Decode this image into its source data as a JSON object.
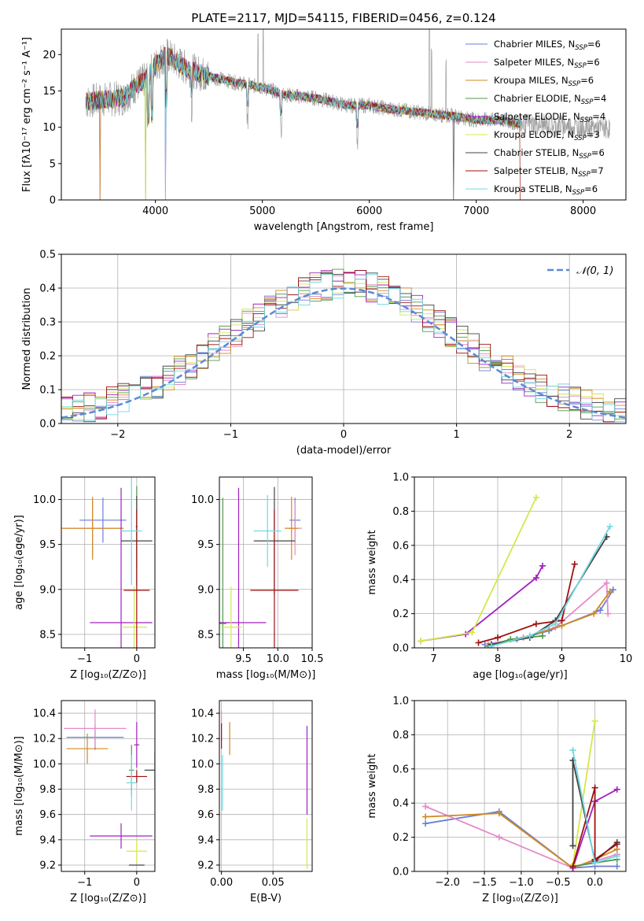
{
  "chart_data": [
    {
      "type": "line",
      "panel": "spectrum",
      "title": "PLATE=2117, MJD=54115, FIBERID=0456, z=0.124",
      "xlabel": "wavelength [Angstrom, rest frame]",
      "ylabel": "Flux [fλ10⁻¹⁷ erg cm⁻² s⁻¹ A⁻¹]",
      "xlim": [
        3120,
        8400
      ],
      "ylim": [
        0,
        23.5
      ],
      "xticks": [
        "4000",
        "5000",
        "6000",
        "7000",
        "8000"
      ],
      "yticks": [
        "0",
        "5",
        "10",
        "15",
        "20"
      ],
      "grid": true,
      "legend_position": "top-right",
      "series": [
        {
          "name": "Chabrier MILES, N",
          "sub": "SSP",
          "suffix": "=6",
          "color": "#6a7fd4"
        },
        {
          "name": "Salpeter MILES, N",
          "sub": "SSP",
          "suffix": "=6",
          "color": "#e58ac8"
        },
        {
          "name": "Kroupa MILES, N",
          "sub": "SSP",
          "suffix": "=6",
          "color": "#d08a20"
        },
        {
          "name": "Chabrier ELODIE, N",
          "sub": "SSP",
          "suffix": "=4",
          "color": "#4e9a4e"
        },
        {
          "name": "Salpeter ELODIE, N",
          "sub": "SSP",
          "suffix": "=4",
          "color": "#a020c0"
        },
        {
          "name": "Kroupa ELODIE, N",
          "sub": "SSP",
          "suffix": "=3",
          "color": "#d4e84a"
        },
        {
          "name": "Chabrier STELIB, N",
          "sub": "SSP",
          "suffix": "=6",
          "color": "#444444"
        },
        {
          "name": "Salpeter STELIB, N",
          "sub": "SSP",
          "suffix": "=7",
          "color": "#a01010"
        },
        {
          "name": "Kroupa STELIB, N",
          "sub": "SSP",
          "suffix": "=6",
          "color": "#70d8e0"
        }
      ],
      "continuum": {
        "x": [
          3350,
          3500,
          3700,
          3800,
          3900,
          4000,
          4100,
          4300,
          4500,
          4800,
          5000,
          5200,
          5500,
          5800,
          6000,
          6200,
          6500,
          6800,
          7000,
          7200,
          7400
        ],
        "y": [
          13.5,
          13.8,
          14.0,
          15.5,
          16.5,
          18.5,
          20.0,
          18.0,
          17.0,
          16.0,
          15.5,
          14.5,
          14.0,
          13.0,
          13.0,
          12.5,
          12.0,
          11.5,
          11.0,
          11.0,
          10.5
        ]
      },
      "observed_color": "#a0a0a0"
    },
    {
      "type": "line",
      "panel": "residuals",
      "xlabel": "(data-model)/error",
      "ylabel": "Normed distribution",
      "xlim": [
        -2.5,
        2.5
      ],
      "ylim": [
        0,
        0.5
      ],
      "xticks": [
        "−2",
        "−1",
        "0",
        "1",
        "2"
      ],
      "yticks": [
        "0.0",
        "0.1",
        "0.2",
        "0.3",
        "0.4",
        "0.5"
      ],
      "grid": true,
      "legend_position": "top-right",
      "reference_curve": {
        "name": "𝒩(0, 1)",
        "color": "#5b8ad6",
        "style": "dashed"
      },
      "histogram_bins": {
        "start": -2.5,
        "width": 0.1,
        "count": 50
      }
    },
    {
      "type": "scatter",
      "panel": "age-vs-metallicity",
      "xlabel": "Z [log₁₀(Z/Z⊙)]",
      "ylabel": "age  [log₁₀(age/yr)]",
      "xlim": [
        -1.45,
        0.35
      ],
      "ylim": [
        8.35,
        10.25
      ],
      "xticks": [
        "−1",
        "0"
      ],
      "yticks": [
        "8.5",
        "9.0",
        "9.5",
        "10.0"
      ],
      "points": [
        {
          "x": -0.65,
          "y": 9.77,
          "xerr": 0.45,
          "yerr": 0.25,
          "color": "#6a7fd4"
        },
        {
          "x": -0.85,
          "y": 9.68,
          "xerr": 0.55,
          "yerr": 0.3,
          "color": "#e58ac8"
        },
        {
          "x": -0.85,
          "y": 9.68,
          "xerr": 0.6,
          "yerr": 0.35,
          "color": "#d08a20"
        },
        {
          "x": 0.0,
          "y": 9.7,
          "xerr": 0.02,
          "yerr": 0.45,
          "color": "#4e9a4e"
        },
        {
          "x": -0.3,
          "y": 8.63,
          "xerr": 0.6,
          "yerr": 1.5,
          "color": "#a020c0"
        },
        {
          "x": -0.05,
          "y": 8.58,
          "xerr": 0.25,
          "yerr": 0.45,
          "color": "#d4e84a"
        },
        {
          "x": 0.0,
          "y": 9.54,
          "xerr": 0.3,
          "yerr": 0.5,
          "color": "#444444"
        },
        {
          "x": 0.0,
          "y": 8.99,
          "xerr": 0.25,
          "yerr": 0.9,
          "color": "#a01010"
        },
        {
          "x": -0.1,
          "y": 9.65,
          "xerr": 0.2,
          "yerr": 0.6,
          "color": "#70d8e0"
        }
      ]
    },
    {
      "type": "scatter",
      "panel": "age-vs-mass",
      "xlabel": "mass [log₁₀(M/M⊙)]",
      "xlim": [
        9.15,
        10.5
      ],
      "ylim": [
        8.35,
        10.25
      ],
      "xticks": [
        "9.5",
        "10.0",
        "10.5"
      ],
      "yticks": [
        "8.5",
        "9.0",
        "9.5",
        "10.0"
      ],
      "points": [
        {
          "x": 10.25,
          "y": 9.77,
          "xerr": 0.08,
          "yerr": 0.25,
          "color": "#6a7fd4"
        },
        {
          "x": 10.25,
          "y": 9.68,
          "xerr": 0.1,
          "yerr": 0.3,
          "color": "#e58ac8"
        },
        {
          "x": 10.2,
          "y": 9.68,
          "xerr": 0.1,
          "yerr": 0.35,
          "color": "#d08a20"
        },
        {
          "x": 9.2,
          "y": 8.62,
          "xerr": 0.05,
          "yerr": 1.4,
          "color": "#4e9a4e"
        },
        {
          "x": 9.43,
          "y": 8.63,
          "xerr": 0.4,
          "yerr": 1.5,
          "color": "#a020c0"
        },
        {
          "x": 9.32,
          "y": 8.58,
          "xerr": 0.15,
          "yerr": 0.45,
          "color": "#d4e84a"
        },
        {
          "x": 9.95,
          "y": 9.54,
          "xerr": 0.3,
          "yerr": 0.6,
          "color": "#444444"
        },
        {
          "x": 9.95,
          "y": 8.99,
          "xerr": 0.35,
          "yerr": 0.9,
          "color": "#a01010"
        },
        {
          "x": 9.85,
          "y": 9.65,
          "xerr": 0.2,
          "yerr": 0.4,
          "color": "#70d8e0"
        }
      ]
    },
    {
      "type": "line",
      "panel": "mass-weight-vs-age",
      "xlabel": "age  [log₁₀(age/yr)]",
      "ylabel": "mass weight",
      "xlim": [
        6.7,
        10.0
      ],
      "ylim": [
        0,
        1.0
      ],
      "xticks": [
        "7",
        "8",
        "9",
        "10"
      ],
      "yticks": [
        "0.0",
        "0.2",
        "0.4",
        "0.6",
        "0.8",
        "1.0"
      ],
      "grid": true,
      "series": [
        {
          "color": "#6a7fd4",
          "x": [
            7.8,
            8.3,
            8.8,
            9.6,
            9.8
          ],
          "y": [
            0.02,
            0.05,
            0.1,
            0.22,
            0.34
          ]
        },
        {
          "color": "#e58ac8",
          "x": [
            7.85,
            8.4,
            8.9,
            9.7,
            9.72
          ],
          "y": [
            0.02,
            0.06,
            0.12,
            0.38,
            0.2
          ]
        },
        {
          "color": "#d08a20",
          "x": [
            7.9,
            8.5,
            9.0,
            9.5,
            9.75
          ],
          "y": [
            0.02,
            0.07,
            0.13,
            0.2,
            0.33
          ]
        },
        {
          "color": "#4e9a4e",
          "x": [
            7.85,
            8.2,
            8.7
          ],
          "y": [
            0.01,
            0.05,
            0.07
          ]
        },
        {
          "color": "#a020c0",
          "x": [
            6.8,
            7.5,
            8.6,
            8.7
          ],
          "y": [
            0.04,
            0.08,
            0.41,
            0.48
          ]
        },
        {
          "color": "#d4e84a",
          "x": [
            6.8,
            7.6,
            8.6
          ],
          "y": [
            0.04,
            0.09,
            0.88
          ]
        },
        {
          "color": "#444444",
          "x": [
            7.9,
            8.5,
            8.9,
            9.7
          ],
          "y": [
            0.02,
            0.06,
            0.16,
            0.65
          ]
        },
        {
          "color": "#a01010",
          "x": [
            7.7,
            8.0,
            8.6,
            9.0,
            9.2
          ],
          "y": [
            0.03,
            0.06,
            0.14,
            0.16,
            0.49
          ]
        },
        {
          "color": "#70d8e0",
          "x": [
            7.9,
            8.5,
            8.9,
            9.75
          ],
          "y": [
            0.01,
            0.07,
            0.14,
            0.71
          ]
        }
      ]
    },
    {
      "type": "scatter",
      "panel": "mass-vs-metallicity",
      "xlabel": "Z [log₁₀(Z/Z⊙)]",
      "ylabel": "mass [log₁₀(M/M⊙)]",
      "xlim": [
        -1.45,
        0.35
      ],
      "ylim": [
        9.15,
        10.5
      ],
      "xticks": [
        "−1",
        "0"
      ],
      "yticks": [
        "9.2",
        "9.4",
        "9.6",
        "9.8",
        "10.0",
        "10.2",
        "10.4"
      ],
      "points": [
        {
          "x": -0.8,
          "y": 10.21,
          "xerr": 0.55,
          "yerr": 0.1,
          "color": "#6a7fd4"
        },
        {
          "x": -0.8,
          "y": 10.28,
          "xerr": 0.6,
          "yerr": 0.15,
          "color": "#e58ac8"
        },
        {
          "x": -0.95,
          "y": 10.12,
          "xerr": 0.4,
          "yerr": 0.12,
          "color": "#d08a20"
        },
        {
          "x": -0.1,
          "y": 9.95,
          "xerr": 0.05,
          "yerr": 0.2,
          "color": "#4e9a4e"
        },
        {
          "x": -0.3,
          "y": 9.43,
          "xerr": 0.6,
          "yerr": 0.1,
          "color": "#a020c0"
        },
        {
          "x": 0.0,
          "y": 9.31,
          "xerr": 0.2,
          "yerr": 0.1,
          "color": "#d4e84a"
        },
        {
          "x": 0.0,
          "y": 9.2,
          "xerr": 0.15,
          "yerr": 0.0,
          "color": "#444444"
        },
        {
          "x": 0.0,
          "y": 9.9,
          "xerr": 0.2,
          "yerr": 0.05,
          "color": "#a01010"
        },
        {
          "x": -0.1,
          "y": 9.85,
          "xerr": 0.1,
          "yerr": 0.22,
          "color": "#70d8e0"
        },
        {
          "x": 0.0,
          "y": 10.15,
          "xerr": 0.05,
          "yerr": 0.18,
          "color": "#a020c0"
        },
        {
          "x": 0.35,
          "y": 9.95,
          "xerr": 0.2,
          "yerr": 0.15,
          "color": "#444444"
        }
      ]
    },
    {
      "type": "scatter",
      "panel": "mass-vs-extinction",
      "xlabel": "E(B-V)",
      "xlim": [
        -0.002,
        0.088
      ],
      "ylim": [
        9.15,
        10.5
      ],
      "xticks": [
        "0.00",
        "0.05"
      ],
      "yticks": [
        "9.2",
        "9.4",
        "9.6",
        "9.8",
        "10.0",
        "10.2",
        "10.4"
      ],
      "points": [
        {
          "x": 0.0,
          "y": 10.3,
          "xerr": 0,
          "yerr": 0.12,
          "color": "#e58ac8"
        },
        {
          "x": 0.0,
          "y": 10.22,
          "xerr": 0,
          "yerr": 0.1,
          "color": "#a01010"
        },
        {
          "x": 0.008,
          "y": 10.2,
          "xerr": 0,
          "yerr": 0.13,
          "color": "#d08a20"
        },
        {
          "x": 0.001,
          "y": 9.85,
          "xerr": 0,
          "yerr": 0.22,
          "color": "#70d8e0"
        },
        {
          "x": 0.083,
          "y": 9.95,
          "xerr": 0,
          "yerr": 0.35,
          "color": "#a020c0"
        },
        {
          "x": 0.083,
          "y": 9.37,
          "xerr": 0,
          "yerr": 0.2,
          "color": "#d4e84a"
        }
      ]
    },
    {
      "type": "line",
      "panel": "mass-weight-vs-metallicity",
      "xlabel": "Z [log₁₀(Z/Z⊙)]",
      "ylabel": "mass weight",
      "xlim": [
        -2.45,
        0.42
      ],
      "ylim": [
        0,
        1.0
      ],
      "xticks": [
        "−2.0",
        "−1.5",
        "−1.0",
        "−0.5",
        "0.0"
      ],
      "yticks": [
        "0.0",
        "0.2",
        "0.4",
        "0.6",
        "0.8",
        "1.0"
      ],
      "grid": true,
      "series": [
        {
          "color": "#6a7fd4",
          "x": [
            -2.3,
            -1.3,
            -0.3,
            0.0,
            0.3
          ],
          "y": [
            0.28,
            0.35,
            0.02,
            0.03,
            0.03
          ]
        },
        {
          "color": "#e58ac8",
          "x": [
            -2.3,
            -1.3,
            -0.3,
            0.0,
            0.3
          ],
          "y": [
            0.38,
            0.2,
            0.02,
            0.06,
            0.1
          ]
        },
        {
          "color": "#d08a20",
          "x": [
            -2.3,
            -1.3,
            -0.3,
            0.0,
            0.3
          ],
          "y": [
            0.32,
            0.34,
            0.02,
            0.07,
            0.13
          ]
        },
        {
          "color": "#4e9a4e",
          "x": [
            -0.3,
            0.0,
            0.3
          ],
          "y": [
            0.03,
            0.05,
            0.07
          ]
        },
        {
          "color": "#a020c0",
          "x": [
            -0.3,
            0.0,
            0.3
          ],
          "y": [
            0.02,
            0.41,
            0.48
          ]
        },
        {
          "color": "#d4e84a",
          "x": [
            -0.3,
            0.0
          ],
          "y": [
            0.04,
            0.88
          ]
        },
        {
          "color": "#444444",
          "x": [
            -0.3,
            -0.3,
            0.0,
            0.3
          ],
          "y": [
            0.15,
            0.65,
            0.06,
            0.17
          ]
        },
        {
          "color": "#a01010",
          "x": [
            -0.3,
            0.0,
            0.0,
            0.3
          ],
          "y": [
            0.03,
            0.49,
            0.07,
            0.16
          ]
        },
        {
          "color": "#70d8e0",
          "x": [
            -0.3,
            0.0,
            0.3
          ],
          "y": [
            0.71,
            0.05,
            0.09
          ]
        }
      ]
    }
  ]
}
